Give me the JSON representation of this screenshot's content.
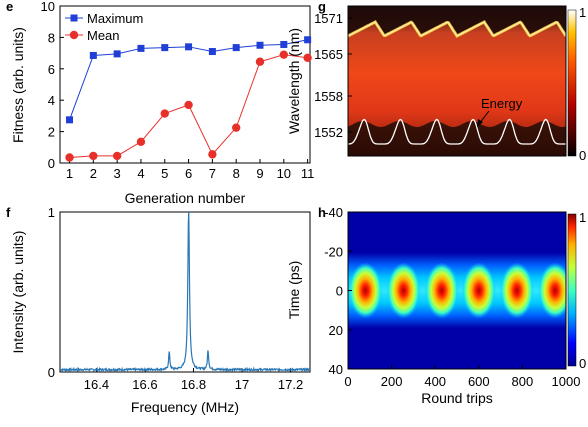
{
  "chart_data": [
    {
      "panel_label": "e",
      "type": "line",
      "xlabel": "Generation number",
      "ylabel": "Fitness (arb. units)",
      "xlim": [
        0.6,
        11.1
      ],
      "ylim": [
        0,
        10
      ],
      "xticks": [
        1,
        2,
        3,
        4,
        5,
        6,
        7,
        8,
        9,
        10,
        11
      ],
      "yticks": [
        0,
        2,
        4,
        6,
        8,
        10
      ],
      "x": [
        1,
        2,
        3,
        4,
        5,
        6,
        7,
        8,
        9,
        10,
        11
      ],
      "series": [
        {
          "name": "Maximum",
          "color": "#1f3fd6",
          "marker": "square",
          "values": [
            2.75,
            6.85,
            6.95,
            7.3,
            7.35,
            7.4,
            7.1,
            7.35,
            7.5,
            7.55,
            7.85
          ]
        },
        {
          "name": "Mean",
          "color": "#e8302a",
          "marker": "circle",
          "values": [
            0.35,
            0.45,
            0.45,
            1.35,
            3.15,
            3.7,
            0.55,
            2.25,
            6.45,
            6.9,
            6.7
          ]
        }
      ],
      "legend": "top-left"
    },
    {
      "panel_label": "f",
      "type": "line",
      "xlabel": "Frequency (MHz)",
      "ylabel": "Intensity (arb. units)",
      "xlim": [
        16.25,
        17.28
      ],
      "ylim": [
        0,
        1
      ],
      "xticks": [
        16.4,
        16.6,
        16.8,
        17,
        17.2
      ],
      "xtick_labels": [
        "16.4",
        "16.6",
        "16.8",
        "17",
        "17.2"
      ],
      "yticks": [
        0,
        1
      ],
      "line_color": "#2a77b5",
      "baseline": 0.015,
      "peaks": [
        {
          "x": 16.78,
          "y": 1.0,
          "width": 0.004
        },
        {
          "x": 16.7,
          "y": 0.11,
          "width": 0.003
        },
        {
          "x": 16.86,
          "y": 0.12,
          "width": 0.003
        }
      ]
    },
    {
      "panel_label": "g",
      "type": "heatmap",
      "xlabel": "",
      "ylabel": "Wavelength (nm)",
      "ylim": [
        1548,
        1573
      ],
      "yticks": [
        1552,
        1558,
        1565,
        1571
      ],
      "colorbar": {
        "min": 0,
        "max": 1,
        "ticks": [
          "0",
          "1"
        ],
        "colormap": "hot"
      },
      "annotation": "Energy",
      "period_count": 6,
      "overlay_line": "Energy (white trace)"
    },
    {
      "panel_label": "h",
      "type": "heatmap",
      "xlabel": "Round trips",
      "ylabel": "Time (ps)",
      "xlim": [
        0,
        1000
      ],
      "ylim": [
        -40,
        40
      ],
      "xticks": [
        0,
        200,
        400,
        600,
        800,
        1000
      ],
      "yticks": [
        -40,
        -20,
        0,
        20,
        40
      ],
      "colorbar": {
        "min": 0,
        "max": 1,
        "ticks": [
          "0",
          "1"
        ],
        "colormap": "jet"
      },
      "pulse_centers_round_trips": [
        80,
        255,
        430,
        600,
        775,
        950
      ]
    }
  ]
}
